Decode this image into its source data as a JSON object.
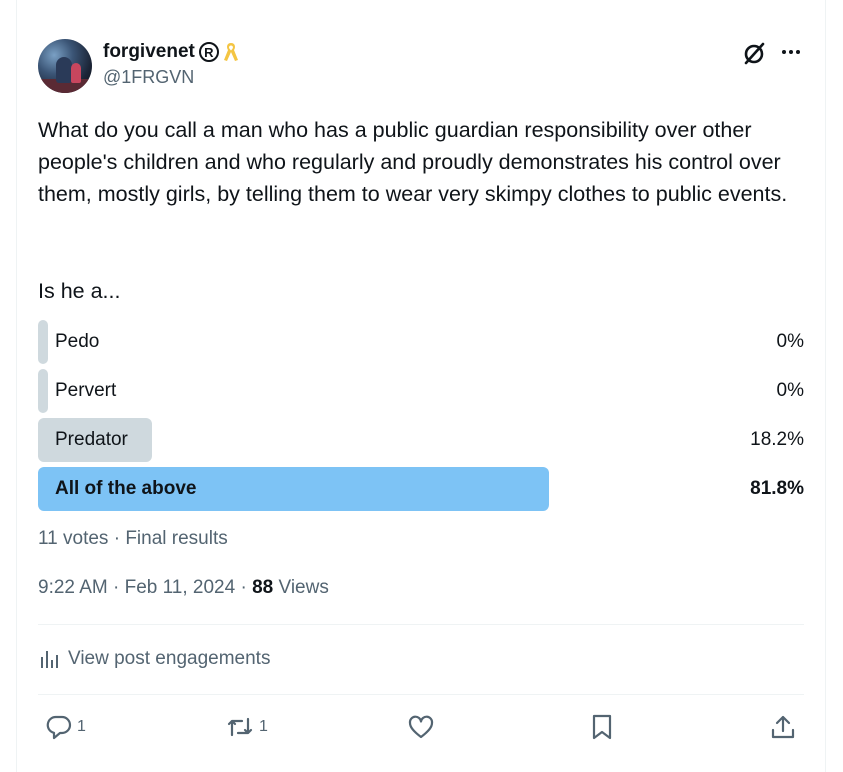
{
  "author": {
    "display_name": "forgivenet",
    "handle": "@1FRGVN",
    "badges": [
      "registered-icon",
      "yellow-ribbon-icon"
    ]
  },
  "header_icons": [
    "grok-icon",
    "more-icon"
  ],
  "tweet": {
    "text": "What do you call a man who has a public guardian responsibility over other people's children and who regularly and proudly demonstrates his control over them, mostly girls, by telling them to wear very skimpy clothes to public events.",
    "question": "Is he a..."
  },
  "poll": {
    "options": [
      {
        "label": "Pedo",
        "percent_text": "0%",
        "percent": 0,
        "winner": false
      },
      {
        "label": "Pervert",
        "percent_text": "0%",
        "percent": 0,
        "winner": false
      },
      {
        "label": "Predator",
        "percent_text": "18.2%",
        "percent": 18.2,
        "winner": false
      },
      {
        "label": "All of the above",
        "percent_text": "81.8%",
        "percent": 81.8,
        "winner": true
      }
    ],
    "votes_text": "11 votes",
    "separator": "·",
    "status": "Final results"
  },
  "meta": {
    "time": "9:22 AM",
    "sep": "·",
    "date": "Feb 11, 2024",
    "views_count": "88",
    "views_label": "Views"
  },
  "engagements": {
    "label": "View post engagements",
    "icon": "analytics-icon"
  },
  "actions": {
    "reply_count": "1",
    "repost_count": "1",
    "like_count": "",
    "bookmark_count": ""
  },
  "colors": {
    "text_primary": "#0f1419",
    "text_secondary": "#536471",
    "poll_bar": "#cfd9de",
    "poll_winner": "#7dc3f5",
    "ribbon": "#f4c543",
    "divider": "#eff3f4"
  }
}
